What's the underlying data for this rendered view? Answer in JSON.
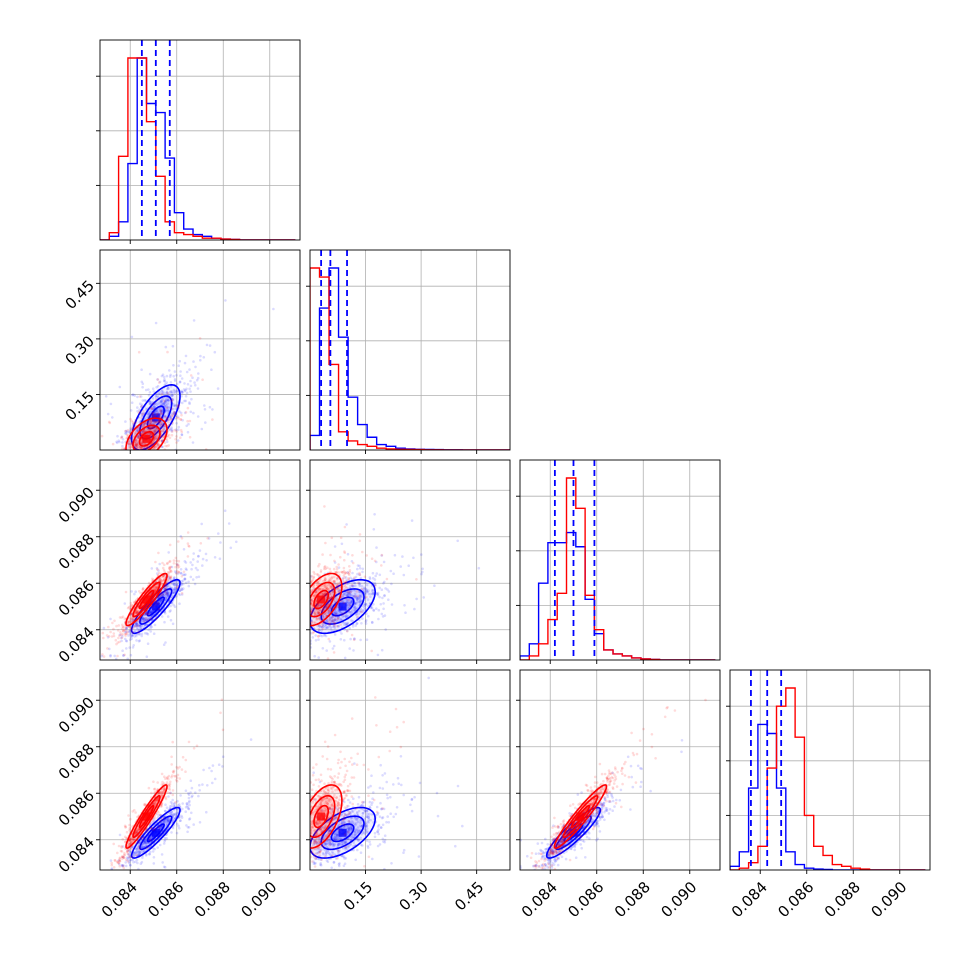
{
  "chart_data": {
    "type": "corner",
    "parameters": [
      {
        "ticks": [
          0.084,
          0.086,
          0.088,
          0.09
        ],
        "tick_labels": [
          "0.084",
          "0.086",
          "0.088",
          "0.090"
        ],
        "range": [
          0.0827,
          0.0913
        ]
      },
      {
        "ticks": [
          0.15,
          0.3,
          0.45
        ],
        "tick_labels": [
          "0.15",
          "0.30",
          "0.45"
        ],
        "range": [
          0.0,
          0.54
        ]
      },
      {
        "ticks": [
          0.084,
          0.086,
          0.088,
          0.09
        ],
        "tick_labels": [
          "0.084",
          "0.086",
          "0.088",
          "0.090"
        ],
        "range": [
          0.0827,
          0.0913
        ]
      },
      {
        "ticks": [
          0.084,
          0.086,
          0.088,
          0.09
        ],
        "tick_labels": [
          "0.084",
          "0.086",
          "0.088",
          "0.090"
        ],
        "range": [
          0.0827,
          0.0913
        ]
      }
    ],
    "grid": true,
    "series": [
      {
        "color": "#0000ff",
        "mean": [
          0.0851,
          0.088,
          0.085,
          0.0843
        ],
        "sd": [
          0.00065,
          0.055,
          0.00072,
          0.00068
        ],
        "correlation": [
          [
            1.0,
            0.65,
            0.88,
            0.9
          ],
          [
            0.65,
            1.0,
            0.55,
            0.55
          ],
          [
            0.88,
            0.55,
            1.0,
            0.9
          ],
          [
            0.9,
            0.55,
            0.9,
            1.0
          ]
        ],
        "quantile_lines": [
          [
            0.0845,
            0.0851,
            0.0857
          ],
          [
            0.03,
            0.055,
            0.1
          ],
          [
            0.0842,
            0.085,
            0.0859
          ],
          [
            0.0836,
            0.0843,
            0.0849
          ]
        ],
        "histograms": [
          {
            "edges": [
              0.0827,
              0.0831,
              0.0835,
              0.0839,
              0.0843,
              0.0847,
              0.0851,
              0.0855,
              0.0859,
              0.0863,
              0.0867,
              0.0871,
              0.0875,
              0.0879,
              0.0883,
              0.0887,
              0.0891,
              0.0895,
              0.0899,
              0.0903,
              0.0907,
              0.0911
            ],
            "counts": [
              0,
              2,
              10,
              42,
              100,
              75,
              70,
              45,
              15,
              6,
              3,
              2,
              1,
              0.5,
              0.3,
              0,
              0,
              0,
              0,
              0,
              0
            ]
          },
          {
            "edges": [
              0.0,
              0.0257,
              0.0514,
              0.0771,
              0.1029,
              0.1286,
              0.1543,
              0.18,
              0.2057,
              0.2314,
              0.2571,
              0.2829,
              0.3086,
              0.3343,
              0.36,
              0.3857,
              0.4114,
              0.4371,
              0.4629,
              0.4886,
              0.5143,
              0.54
            ],
            "counts": [
              8,
              78,
              100,
              62,
              29,
              14,
              7,
              3,
              2,
              1,
              0.6,
              0.4,
              0.3,
              0.2,
              0.1,
              0.1,
              0,
              0,
              0,
              0,
              0
            ]
          },
          {
            "edges": [
              0.0827,
              0.0831,
              0.0835,
              0.0839,
              0.0843,
              0.0847,
              0.0851,
              0.0855,
              0.0859,
              0.0863,
              0.0867,
              0.0871,
              0.0875,
              0.0879,
              0.0883,
              0.0887,
              0.0891,
              0.0895,
              0.0899,
              0.0903,
              0.0907,
              0.0911
            ],
            "counts": [
              2,
              8,
              38,
              58,
              58,
              63,
              56,
              30,
              13,
              5,
              3,
              2,
              1,
              0.5,
              0.3,
              0,
              0,
              0,
              0,
              0,
              0
            ]
          },
          {
            "edges": [
              0.0827,
              0.0831,
              0.0835,
              0.0839,
              0.0843,
              0.0847,
              0.0851,
              0.0855,
              0.0859,
              0.0863,
              0.0867,
              0.0871,
              0.0875,
              0.0879,
              0.0883,
              0.0887,
              0.0891,
              0.0895,
              0.0899,
              0.0903,
              0.0907,
              0.0911
            ],
            "counts": [
              2,
              10,
              45,
              80,
              75,
              45,
              10,
              3,
              1,
              0.5,
              0.3,
              0,
              0,
              0,
              0,
              0,
              0,
              0,
              0,
              0,
              0
            ]
          }
        ]
      },
      {
        "color": "#ff0000",
        "mean": [
          0.0847,
          0.03,
          0.0853,
          0.085
        ],
        "sd": [
          0.00055,
          0.035,
          0.0007,
          0.00085
        ],
        "correlation": [
          [
            1.0,
            0.45,
            0.92,
            0.95
          ],
          [
            0.45,
            1.0,
            0.5,
            0.5
          ],
          [
            0.92,
            0.5,
            1.0,
            0.95
          ],
          [
            0.95,
            0.5,
            0.95,
            1.0
          ]
        ],
        "histograms": [
          {
            "edges": [
              0.0827,
              0.0831,
              0.0835,
              0.0839,
              0.0843,
              0.0847,
              0.0851,
              0.0855,
              0.0859,
              0.0863,
              0.0867,
              0.0871,
              0.0875,
              0.0879,
              0.0883,
              0.0887,
              0.0891,
              0.0895,
              0.0899,
              0.0903,
              0.0907,
              0.0911
            ],
            "counts": [
              0,
              4,
              46,
              100,
              100,
              65,
              35,
              10,
              4,
              3,
              2,
              1,
              1,
              0.5,
              0.3,
              0,
              0,
              0,
              0,
              0,
              0
            ]
          },
          {
            "edges": [
              0.0,
              0.0257,
              0.0514,
              0.0771,
              0.1029,
              0.1286,
              0.1543,
              0.18,
              0.2057,
              0.2314,
              0.2571,
              0.2829,
              0.3086,
              0.3343,
              0.36,
              0.3857,
              0.4114,
              0.4371,
              0.4629,
              0.4886,
              0.5143,
              0.54
            ],
            "counts": [
              100,
              95,
              47,
              10,
              5,
              3,
              2,
              1,
              0.6,
              0.4,
              0.3,
              0.2,
              0.1,
              0.1,
              0,
              0,
              0,
              0,
              0,
              0,
              0
            ]
          },
          {
            "edges": [
              0.0827,
              0.0831,
              0.0835,
              0.0839,
              0.0843,
              0.0847,
              0.0851,
              0.0855,
              0.0859,
              0.0863,
              0.0867,
              0.0871,
              0.0875,
              0.0879,
              0.0883,
              0.0887,
              0.0891,
              0.0895,
              0.0899,
              0.0903,
              0.0907,
              0.0911
            ],
            "counts": [
              0,
              2,
              8,
              20,
              33,
              90,
              75,
              32,
              15,
              5,
              3,
              2,
              1,
              0.5,
              0.3,
              0,
              0,
              0,
              0,
              0,
              0
            ]
          },
          {
            "edges": [
              0.0827,
              0.0831,
              0.0835,
              0.0839,
              0.0843,
              0.0847,
              0.0851,
              0.0855,
              0.0859,
              0.0863,
              0.0867,
              0.0871,
              0.0875,
              0.0879,
              0.0883,
              0.0887,
              0.0891,
              0.0895,
              0.0899,
              0.0903,
              0.0907,
              0.0911
            ],
            "counts": [
              0,
              1,
              4,
              13,
              56,
              90,
              100,
              73,
              30,
              13,
              8,
              3,
              2,
              1,
              0.5,
              0,
              0,
              0,
              0,
              0,
              0
            ]
          }
        ]
      }
    ]
  }
}
